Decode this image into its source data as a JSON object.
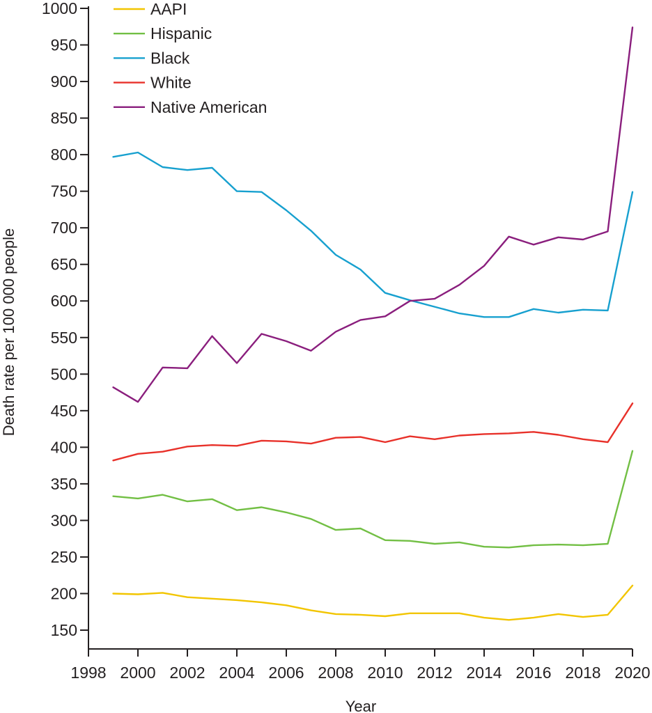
{
  "chart_data": {
    "type": "line",
    "title": "",
    "xlabel": "Year",
    "ylabel": "Death rate per 100 000 people",
    "xlim": [
      1998,
      2020
    ],
    "ylim": [
      125,
      1000
    ],
    "x_ticks": [
      "1998",
      "2000",
      "2002",
      "2004",
      "2006",
      "2008",
      "2010",
      "2012",
      "2014",
      "2016",
      "2018",
      "2020"
    ],
    "y_ticks": [
      "150",
      "200",
      "250",
      "300",
      "350",
      "400",
      "450",
      "500",
      "550",
      "600",
      "650",
      "700",
      "750",
      "800",
      "850",
      "900",
      "950",
      "1000"
    ],
    "legend_position": "top-left",
    "grid": false,
    "x": [
      1999,
      2000,
      2001,
      2002,
      2003,
      2004,
      2005,
      2006,
      2007,
      2008,
      2009,
      2010,
      2011,
      2012,
      2013,
      2014,
      2015,
      2016,
      2017,
      2018,
      2019,
      2020
    ],
    "series": [
      {
        "name": "AAPI",
        "color": "#f2c500",
        "values": [
          200,
          199,
          201,
          195,
          193,
          191,
          188,
          184,
          177,
          172,
          171,
          169,
          173,
          173,
          173,
          167,
          164,
          167,
          172,
          168,
          171,
          211
        ]
      },
      {
        "name": "Hispanic",
        "color": "#72bf44",
        "values": [
          333,
          330,
          335,
          326,
          329,
          314,
          318,
          311,
          302,
          287,
          289,
          273,
          272,
          268,
          270,
          264,
          263,
          266,
          267,
          266,
          268,
          395
        ]
      },
      {
        "name": "Black",
        "color": "#17a0cf",
        "values": [
          797,
          803,
          783,
          779,
          782,
          750,
          749,
          724,
          696,
          663,
          643,
          611,
          601,
          592,
          583,
          578,
          578,
          589,
          584,
          588,
          587,
          749
        ]
      },
      {
        "name": "White",
        "color": "#e8312a",
        "values": [
          382,
          391,
          394,
          401,
          403,
          402,
          409,
          408,
          405,
          413,
          414,
          407,
          415,
          411,
          416,
          418,
          419,
          421,
          417,
          411,
          407,
          460
        ]
      },
      {
        "name": "Native American",
        "color": "#8a1e7d",
        "values": [
          482,
          462,
          509,
          508,
          552,
          515,
          555,
          545,
          532,
          558,
          574,
          579,
          600,
          603,
          622,
          648,
          688,
          677,
          687,
          684,
          695,
          974
        ]
      }
    ]
  }
}
